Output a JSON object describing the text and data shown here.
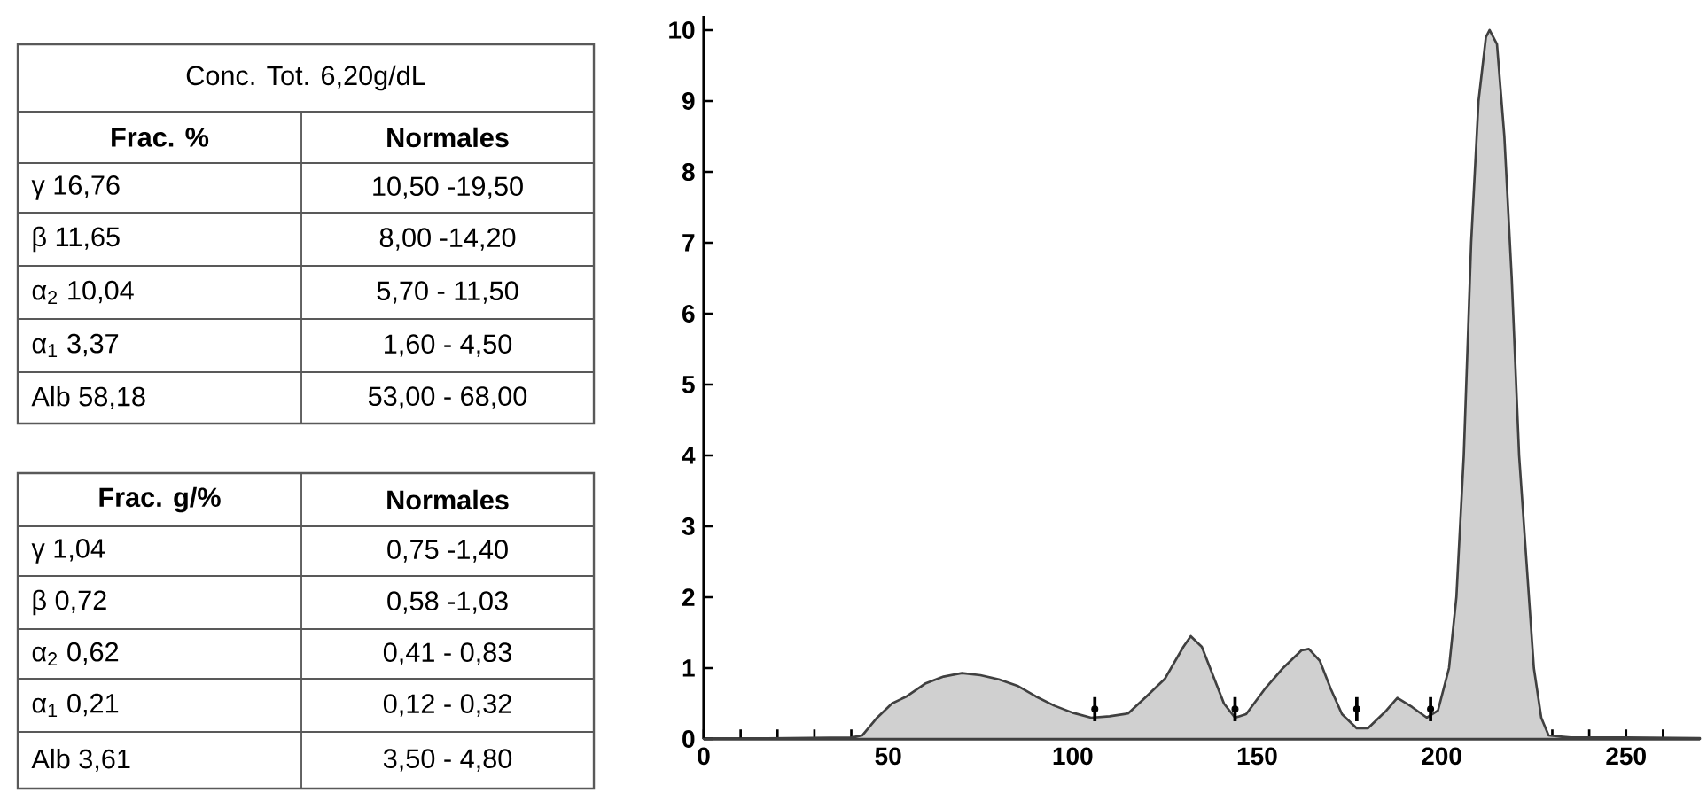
{
  "chart_data": [
    {
      "type": "other",
      "title": "Conc. Tot. 6,20g/dL",
      "annotations": [
        "Frac. %",
        "Normales",
        "γ 16,76",
        "10,50 -19,50",
        "β 11,65",
        "8,00 -14,20",
        "α$_{2}$ 10,04",
        "5,70 - 11,50",
        "α$_{1}$ 3,37",
        "1,60 - 4,50",
        "Alb 58,18",
        "53,00 - 68,00",
        "Frac. g/%",
        "Normales",
        "γ 1,04",
        "0,75 -1,40",
        "β 0,72",
        "0,58 -1,03",
        "α$_{2}$ 0,62",
        "0,41 - 0,83",
        "α$_{1}$ 0,21",
        "0,12 - 0,32",
        "Alb 3,61",
        "3,50 - 4,80"
      ]
    },
    {
      "type": "area",
      "series": [
        {
          "type": "area",
          "color": "#d0d0d0",
          "x": [
            0,
            40,
            43,
            47,
            51,
            55,
            60,
            65,
            70,
            75,
            80,
            85,
            90,
            95,
            100,
            105,
            110,
            115,
            120,
            125,
            130,
            132,
            135,
            138,
            141,
            144,
            147,
            152,
            157,
            162,
            164,
            167,
            170,
            173,
            177,
            180,
            185,
            188,
            192,
            196,
            199,
            202,
            204,
            206,
            208,
            210,
            212,
            213,
            215,
            217,
            219,
            221,
            223,
            225,
            227,
            229,
            235,
            250,
            270
          ],
          "values": [
            0,
            0.02,
            0.05,
            0.3,
            0.5,
            0.6,
            0.78,
            0.88,
            0.93,
            0.9,
            0.84,
            0.75,
            0.6,
            0.47,
            0.37,
            0.3,
            0.32,
            0.36,
            0.6,
            0.85,
            1.3,
            1.45,
            1.3,
            0.9,
            0.5,
            0.3,
            0.35,
            0.7,
            1.0,
            1.25,
            1.27,
            1.1,
            0.7,
            0.35,
            0.15,
            0.15,
            0.4,
            0.58,
            0.45,
            0.3,
            0.4,
            1.0,
            2.0,
            4.0,
            7.0,
            9.0,
            9.9,
            10.0,
            9.8,
            8.5,
            6.5,
            4.0,
            2.5,
            1.0,
            0.3,
            0.05,
            0.02,
            0.02,
            0.01
          ]
        },
        {
          "type": "scatter",
          "color": "#000000",
          "marker": "circle",
          "x": [
            106,
            144,
            177,
            197
          ],
          "values": [
            0.42,
            0.42,
            0.42,
            0.42
          ],
          "errors": [
            0.17,
            0.17,
            0.17,
            0.17
          ]
        }
      ],
      "xlim": [
        0,
        270
      ],
      "ylim": [
        0,
        10.2
      ],
      "xticks": [
        0,
        {
          "value": 10,
          "label": null
        },
        {
          "value": 20,
          "label": null
        },
        {
          "value": 30,
          "label": null
        },
        {
          "value": 40,
          "label": null
        },
        50,
        {
          "value": 60,
          "label": null
        },
        {
          "value": 70,
          "label": null
        },
        {
          "value": 80,
          "label": null
        },
        {
          "value": 90,
          "label": null
        },
        100,
        {
          "value": 110,
          "label": null
        },
        {
          "value": 120,
          "label": null
        },
        {
          "value": 130,
          "label": null
        },
        {
          "value": 140,
          "label": null
        },
        150,
        {
          "value": 160,
          "label": null
        },
        {
          "value": 170,
          "label": null
        },
        {
          "value": 180,
          "label": null
        },
        {
          "value": 190,
          "label": null
        },
        200,
        {
          "value": 210,
          "label": null
        },
        {
          "value": 220,
          "label": null
        },
        {
          "value": 230,
          "label": null
        },
        {
          "value": 240,
          "label": null
        },
        250,
        {
          "value": 260,
          "label": null
        }
      ],
      "yticks": [
        0,
        1,
        2,
        3,
        4,
        5,
        6,
        7,
        8,
        9,
        10
      ]
    }
  ]
}
